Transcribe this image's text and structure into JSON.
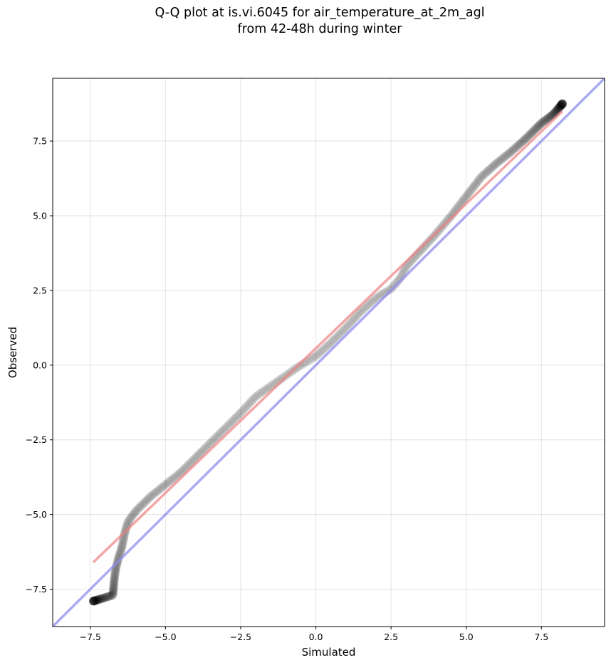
{
  "chart_data": {
    "type": "scatter",
    "title_line1": "Q-Q plot at is.vi.6045 for air_temperature_at_2m_agl",
    "title_line2": "from 42-48h during winter",
    "xlabel": "Simulated",
    "ylabel": "Observed",
    "xlim": [
      -8.75,
      9.6
    ],
    "ylim": [
      -8.75,
      9.6
    ],
    "x_ticks": [
      -7.5,
      -5.0,
      -2.5,
      0.0,
      2.5,
      5.0,
      7.5
    ],
    "y_ticks": [
      -7.5,
      -5.0,
      -2.5,
      0.0,
      2.5,
      5.0,
      7.5
    ],
    "x_tick_labels": [
      "−7.5",
      "−5.0",
      "−2.5",
      "0.0",
      "2.5",
      "5.0",
      "7.5"
    ],
    "y_tick_labels": [
      "−7.5",
      "−5.0",
      "−2.5",
      "0.0",
      "2.5",
      "5.0",
      "7.5"
    ],
    "grid": true,
    "points_color": "#000000",
    "fit_line": {
      "color": "#f08080",
      "x": [
        -7.4,
        8.2
      ],
      "y": [
        -6.6,
        8.5
      ]
    },
    "identity_line": {
      "color": "#8c8cf0",
      "x": [
        -8.75,
        9.6
      ],
      "y": [
        -8.75,
        9.6
      ]
    },
    "quantile_anchors": [
      [
        -7.4,
        -7.9
      ],
      [
        -6.75,
        -7.7
      ],
      [
        -6.7,
        -7.15
      ],
      [
        -6.65,
        -6.8
      ],
      [
        -6.55,
        -6.4
      ],
      [
        -6.45,
        -6.1
      ],
      [
        -6.35,
        -5.6
      ],
      [
        -6.25,
        -5.25
      ],
      [
        -6.0,
        -4.9
      ],
      [
        -5.5,
        -4.4
      ],
      [
        -5.0,
        -4.0
      ],
      [
        -4.5,
        -3.6
      ],
      [
        -4.0,
        -3.1
      ],
      [
        -3.5,
        -2.6
      ],
      [
        -3.0,
        -2.1
      ],
      [
        -2.5,
        -1.6
      ],
      [
        -2.0,
        -1.05
      ],
      [
        -1.5,
        -0.7
      ],
      [
        -1.0,
        -0.35
      ],
      [
        -0.5,
        0.0
      ],
      [
        0.0,
        0.3
      ],
      [
        0.5,
        0.75
      ],
      [
        1.0,
        1.25
      ],
      [
        1.5,
        1.8
      ],
      [
        2.0,
        2.25
      ],
      [
        2.5,
        2.55
      ],
      [
        2.8,
        2.9
      ],
      [
        3.0,
        3.3
      ],
      [
        3.5,
        3.85
      ],
      [
        4.0,
        4.4
      ],
      [
        4.5,
        5.0
      ],
      [
        5.0,
        5.65
      ],
      [
        5.5,
        6.3
      ],
      [
        6.0,
        6.75
      ],
      [
        6.5,
        7.15
      ],
      [
        7.0,
        7.6
      ],
      [
        7.5,
        8.1
      ],
      [
        7.9,
        8.4
      ],
      [
        8.2,
        8.75
      ]
    ],
    "n_points": 420
  }
}
